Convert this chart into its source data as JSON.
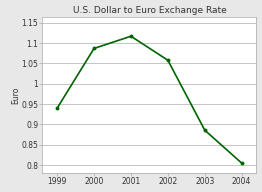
{
  "title": "U.S. Dollar to Euro Exchange Rate",
  "xlabel": "",
  "ylabel": "Euro",
  "x_values": [
    1999,
    2000,
    2001,
    2002,
    2003,
    2004
  ],
  "y_values": [
    0.94,
    1.087,
    1.117,
    1.058,
    0.886,
    0.805
  ],
  "xlim": [
    1998.6,
    2004.4
  ],
  "ylim": [
    0.78,
    1.165
  ],
  "yticks": [
    0.8,
    0.85,
    0.9,
    0.95,
    1.0,
    1.05,
    1.1,
    1.15
  ],
  "ytick_labels": [
    "0.8",
    "0.85",
    "0.9",
    "0.95",
    "1",
    "1.05",
    "1.1",
    "1.15"
  ],
  "xticks": [
    1999,
    2000,
    2001,
    2002,
    2003,
    2004
  ],
  "line_color": "#006400",
  "line_width": 1.2,
  "marker_size": 1.8,
  "background_color": "#e8e8e8",
  "plot_bg_color": "#ffffff",
  "grid_color": "#bbbbbb",
  "border_color": "#aaaaaa",
  "title_fontsize": 6.5,
  "label_fontsize": 5.5,
  "tick_fontsize": 5.5
}
